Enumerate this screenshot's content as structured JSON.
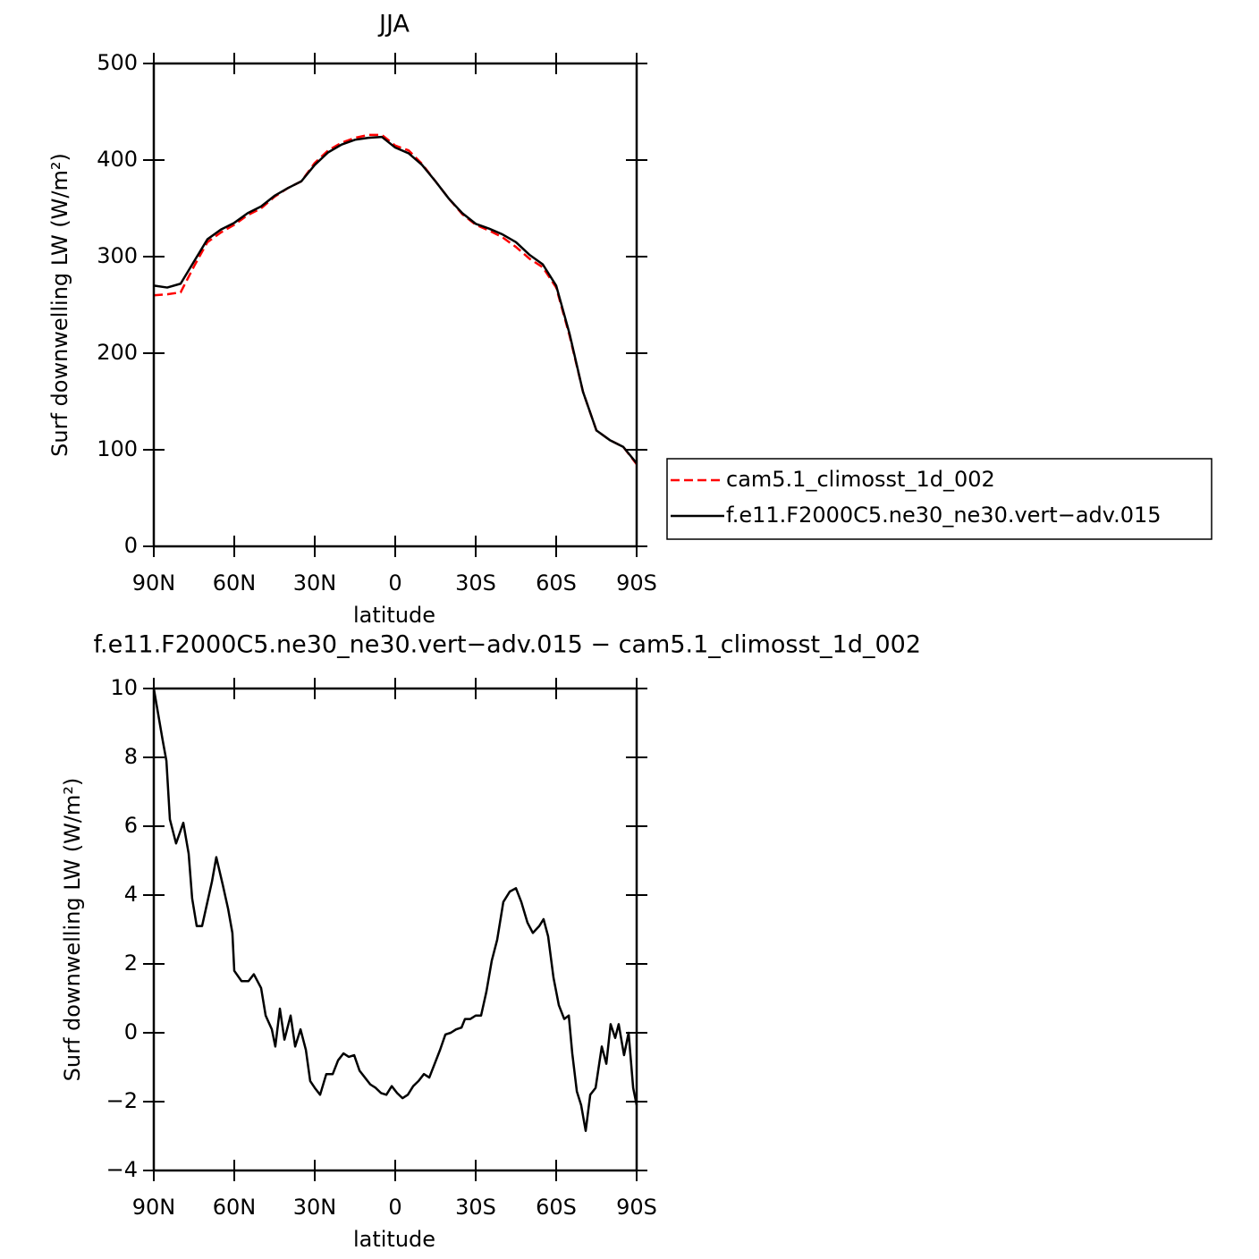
{
  "chart_data": [
    {
      "type": "line",
      "title": "JJA",
      "xlabel": "latitude",
      "ylabel": "Surf downwelling LW (W/m²)",
      "x": [
        90,
        85,
        80,
        75,
        70,
        65,
        60,
        55,
        50,
        45,
        40,
        35,
        30,
        25,
        20,
        15,
        10,
        5,
        0,
        -5,
        -10,
        -15,
        -20,
        -25,
        -30,
        -35,
        -40,
        -45,
        -50,
        -55,
        -60,
        -65,
        -70,
        -75,
        -80,
        -85,
        -90
      ],
      "xlim": [
        90,
        -90
      ],
      "xticks": [
        {
          "value": 90,
          "label": "90N"
        },
        {
          "value": 60,
          "label": "60N"
        },
        {
          "value": 30,
          "label": "30N"
        },
        0,
        {
          "value": -30,
          "label": "30S"
        },
        {
          "value": -60,
          "label": "60S"
        },
        {
          "value": -90,
          "label": "90S"
        }
      ],
      "ylim": [
        0,
        500
      ],
      "yticks": [
        0,
        100,
        200,
        300,
        400,
        500
      ],
      "series": [
        {
          "name": "cam5.1_climosst_1d_002",
          "color": "#ff0000",
          "dash": true,
          "values": [
            260,
            261,
            263,
            290,
            315,
            325,
            333,
            343,
            350,
            362,
            371,
            378,
            397,
            410,
            418,
            423,
            426,
            426,
            415,
            410,
            396,
            378,
            360,
            344,
            333,
            327,
            320,
            310,
            298,
            289,
            268,
            218,
            160,
            120,
            110,
            103,
            85
          ]
        },
        {
          "name": "f.e11.F2000C5.ne30_ne30.vert−adv.015",
          "color": "#000000",
          "dash": false,
          "values": [
            270,
            268,
            272,
            295,
            318,
            328,
            335,
            345,
            352,
            363,
            371,
            378,
            395,
            408,
            416,
            421,
            423,
            424,
            413,
            407,
            395,
            378,
            360,
            345,
            334,
            329,
            323,
            315,
            302,
            292,
            270,
            220,
            160,
            120,
            110,
            103,
            86
          ]
        }
      ]
    },
    {
      "type": "line",
      "title": "f.e11.F2000C5.ne30_ne30.vert−adv.015 − cam5.1_climosst_1d_002",
      "xlabel": "latitude",
      "ylabel": "Surf downwelling LW (W/m²)",
      "x": [
        90,
        86.7,
        85.3,
        84,
        81.7,
        79,
        77,
        75.7,
        74,
        72,
        70.3,
        68.3,
        66.7,
        64.3,
        62.3,
        60.7,
        60,
        57.3,
        54.7,
        52.7,
        50,
        48.3,
        46,
        44.7,
        43,
        41.3,
        39,
        37.3,
        35.3,
        33.3,
        31.7,
        30,
        28,
        25.7,
        23.3,
        21.3,
        19.3,
        17.3,
        15.3,
        13.3,
        11.3,
        9.3,
        7.3,
        5.3,
        3.3,
        1.3,
        -0.7,
        -2.7,
        -4.7,
        -6.7,
        -8.7,
        -10.7,
        -12.7,
        -14.7,
        -16.7,
        -18.7,
        -20.7,
        -22.7,
        -24.7,
        -26,
        -28,
        -30,
        -32,
        -34,
        -36,
        -38,
        -40.3,
        -42.7,
        -45,
        -47,
        -49.3,
        -51.3,
        -53.7,
        -55.3,
        -57,
        -59,
        -61,
        -63,
        -64.7,
        -66,
        -67.7,
        -69.3,
        -71,
        -72.7,
        -74.7,
        -77,
        -78.7,
        -80.3,
        -82,
        -83.3,
        -85.3,
        -87,
        -88.7,
        -90
      ],
      "xlim": [
        90,
        -90
      ],
      "xticks": [
        {
          "value": 90,
          "label": "90N"
        },
        {
          "value": 60,
          "label": "60N"
        },
        {
          "value": 30,
          "label": "30N"
        },
        0,
        {
          "value": -30,
          "label": "30S"
        },
        {
          "value": -60,
          "label": "60S"
        },
        {
          "value": -90,
          "label": "90S"
        }
      ],
      "ylim": [
        -4,
        10
      ],
      "yticks": [
        {
          "value": -4,
          "label": "−4"
        },
        {
          "value": -2,
          "label": "−2"
        },
        0,
        2,
        4,
        6,
        8,
        10
      ],
      "color": "#000000",
      "values": [
        10,
        8.5,
        7.9,
        6.2,
        5.5,
        6.1,
        5.2,
        3.9,
        3.1,
        3.1,
        3.7,
        4.4,
        5.1,
        4.3,
        3.6,
        2.9,
        1.8,
        1.5,
        1.5,
        1.7,
        1.3,
        0.5,
        0.1,
        -0.4,
        0.7,
        -0.2,
        0.5,
        -0.4,
        0.1,
        -0.5,
        -1.4,
        -1.6,
        -1.8,
        -1.2,
        -1.2,
        -0.8,
        -0.6,
        -0.7,
        -0.65,
        -1.1,
        -1.3,
        -1.5,
        -1.6,
        -1.75,
        -1.8,
        -1.55,
        -1.75,
        -1.9,
        -1.8,
        -1.55,
        -1.4,
        -1.2,
        -1.3,
        -0.9,
        -0.5,
        -0.05,
        0,
        0.1,
        0.15,
        0.4,
        0.4,
        0.5,
        0.5,
        1.2,
        2.1,
        2.7,
        3.8,
        4.1,
        4.2,
        3.8,
        3.2,
        2.9,
        3.1,
        3.3,
        2.8,
        1.6,
        0.8,
        0.4,
        0.5,
        -0.6,
        -1.7,
        -2.1,
        -2.85,
        -1.8,
        -1.6,
        -0.4,
        -0.9,
        0.25,
        -0.15,
        0.25,
        -0.65,
        0,
        -1.6,
        -2.1
      ]
    }
  ]
}
